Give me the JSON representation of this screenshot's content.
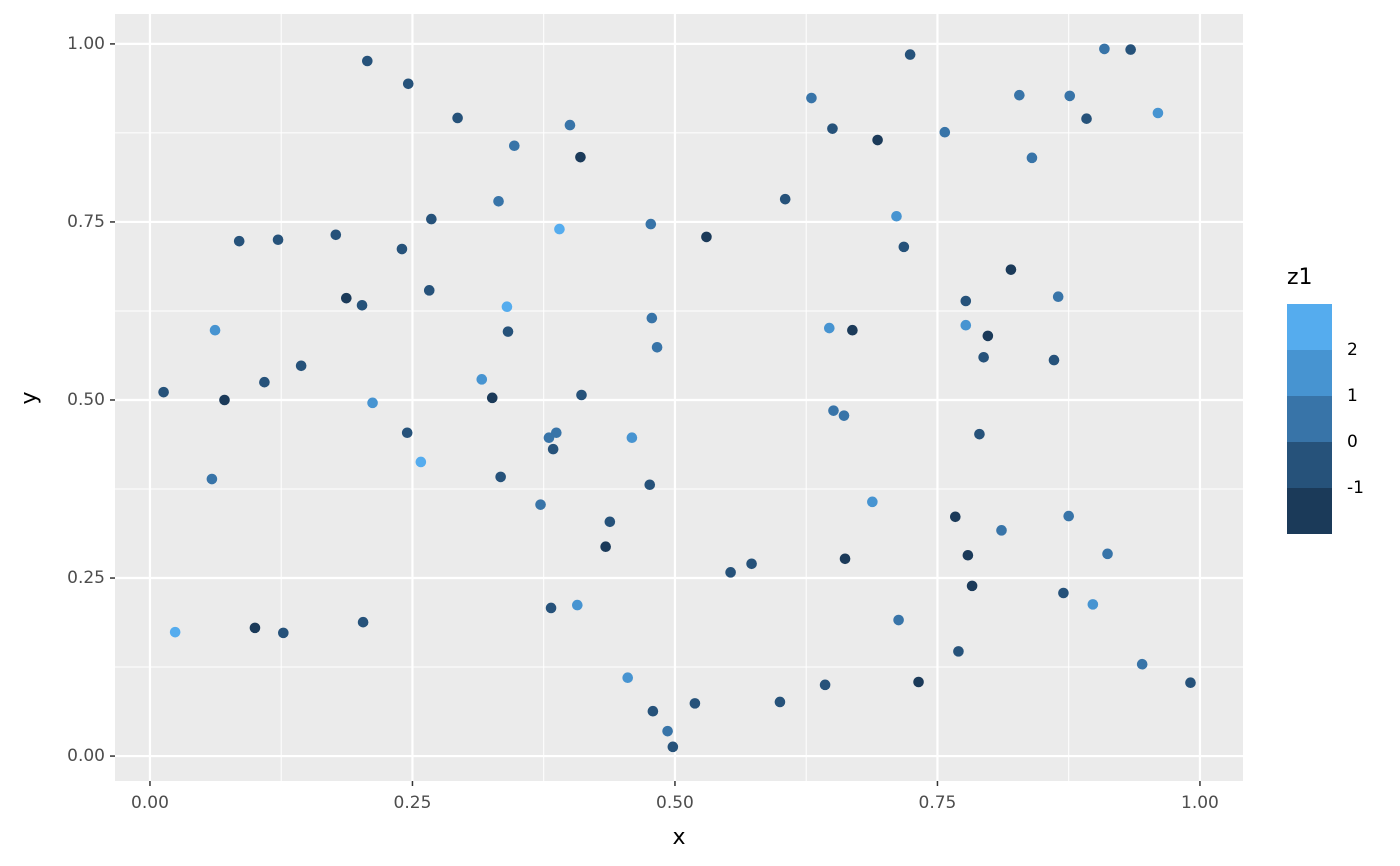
{
  "chart_data": {
    "type": "scatter",
    "x_label": "x",
    "y_label": "y",
    "xlim": [
      -0.0333,
      1.041
    ],
    "ylim": [
      -0.035,
      1.042
    ],
    "xticks": [
      {
        "value": 0,
        "label": "0.00"
      },
      {
        "value": 0.25,
        "label": "0.25"
      },
      {
        "value": 0.5,
        "label": "0.50"
      },
      {
        "value": 0.75,
        "label": "0.75"
      },
      {
        "value": 1,
        "label": "1.00"
      }
    ],
    "yticks": [
      {
        "value": 0,
        "label": "0.00"
      },
      {
        "value": 0.25,
        "label": "0.25"
      },
      {
        "value": 0.5,
        "label": "0.50"
      },
      {
        "value": 0.75,
        "label": "0.75"
      },
      {
        "value": 1,
        "label": "1.00"
      }
    ],
    "grid": true,
    "x": [
      0.013,
      0.024,
      0.059,
      0.062,
      0.071,
      0.085,
      0.1,
      0.109,
      0.122,
      0.127,
      0.144,
      0.177,
      0.187,
      0.202,
      0.203,
      0.207,
      0.212,
      0.24,
      0.245,
      0.246,
      0.258,
      0.266,
      0.268,
      0.293,
      0.316,
      0.326,
      0.332,
      0.334,
      0.34,
      0.341,
      0.347,
      0.372,
      0.38,
      0.382,
      0.384,
      0.387,
      0.39,
      0.4,
      0.407,
      0.41,
      0.411,
      0.434,
      0.438,
      0.455,
      0.459,
      0.476,
      0.477,
      0.478,
      0.479,
      0.483,
      0.493,
      0.498,
      0.519,
      0.53,
      0.553,
      0.573,
      0.6,
      0.605,
      0.63,
      0.643,
      0.647,
      0.65,
      0.651,
      0.661,
      0.662,
      0.669,
      0.688,
      0.693,
      0.711,
      0.713,
      0.718,
      0.724,
      0.732,
      0.757,
      0.767,
      0.77,
      0.777,
      0.777,
      0.779,
      0.783,
      0.79,
      0.794,
      0.798,
      0.811,
      0.82,
      0.828,
      0.84,
      0.861,
      0.865,
      0.87,
      0.875,
      0.876,
      0.892,
      0.898,
      0.909,
      0.912,
      0.934,
      0.945,
      0.96,
      0.991
    ],
    "y": [
      0.511,
      0.174,
      0.389,
      0.598,
      0.5,
      0.723,
      0.18,
      0.525,
      0.725,
      0.173,
      0.548,
      0.732,
      0.643,
      0.633,
      0.188,
      0.976,
      0.496,
      0.712,
      0.454,
      0.944,
      0.413,
      0.654,
      0.754,
      0.896,
      0.529,
      0.503,
      0.779,
      0.392,
      0.631,
      0.596,
      0.857,
      0.353,
      0.447,
      0.208,
      0.431,
      0.454,
      0.74,
      0.886,
      0.212,
      0.841,
      0.507,
      0.294,
      0.329,
      0.11,
      0.447,
      0.381,
      0.747,
      0.615,
      0.063,
      0.574,
      0.035,
      0.013,
      0.074,
      0.729,
      0.258,
      0.27,
      0.076,
      0.782,
      0.924,
      0.1,
      0.601,
      0.881,
      0.485,
      0.478,
      0.277,
      0.598,
      0.357,
      0.865,
      0.758,
      0.191,
      0.715,
      0.985,
      0.104,
      0.876,
      0.336,
      0.147,
      0.605,
      0.639,
      0.282,
      0.239,
      0.452,
      0.56,
      0.59,
      0.317,
      0.683,
      0.928,
      0.84,
      0.556,
      0.645,
      0.229,
      0.337,
      0.927,
      0.895,
      0.213,
      0.993,
      0.284,
      0.992,
      0.129,
      0.903,
      0.103
    ],
    "colors": [
      "#26527a",
      "#55acee",
      "#3874a8",
      "#4794d1",
      "#1b3a59",
      "#26527a",
      "#1b3a59",
      "#26527a",
      "#26527a",
      "#26527a",
      "#26527a",
      "#26527a",
      "#1b3a59",
      "#26527a",
      "#26527a",
      "#26527a",
      "#4794d1",
      "#26527a",
      "#26527a",
      "#26527a",
      "#55acee",
      "#26527a",
      "#26527a",
      "#26527a",
      "#4794d1",
      "#1b3a59",
      "#3874a8",
      "#26527a",
      "#55acee",
      "#26527a",
      "#3874a8",
      "#3874a8",
      "#3874a8",
      "#26527a",
      "#26527a",
      "#3874a8",
      "#55acee",
      "#3874a8",
      "#4794d1",
      "#1b3a59",
      "#26527a",
      "#1b3a59",
      "#26527a",
      "#4794d1",
      "#4794d1",
      "#26527a",
      "#3874a8",
      "#3874a8",
      "#26527a",
      "#3874a8",
      "#3874a8",
      "#26527a",
      "#26527a",
      "#1b3a59",
      "#26527a",
      "#26527a",
      "#26527a",
      "#26527a",
      "#3874a8",
      "#26527a",
      "#4794d1",
      "#26527a",
      "#3874a8",
      "#3874a8",
      "#1b3a59",
      "#1b3a59",
      "#4794d1",
      "#1b3a59",
      "#4794d1",
      "#3874a8",
      "#26527a",
      "#26527a",
      "#1b3a59",
      "#3874a8",
      "#1b3a59",
      "#26527a",
      "#4794d1",
      "#26527a",
      "#1b3a59",
      "#1b3a59",
      "#26527a",
      "#26527a",
      "#1b3a59",
      "#3874a8",
      "#1b3a59",
      "#3874a8",
      "#3874a8",
      "#26527a",
      "#3874a8",
      "#26527a",
      "#3874a8",
      "#3874a8",
      "#26527a",
      "#4794d1",
      "#3874a8",
      "#3874a8",
      "#26527a",
      "#3874a8",
      "#4794d1",
      "#26527a"
    ],
    "legend": {
      "title": "z1",
      "colors": [
        "#55acee",
        "#4794d1",
        "#3874a8",
        "#26527a",
        "#1b3a59"
      ],
      "breaks": [
        2,
        1,
        0,
        -1
      ]
    }
  }
}
